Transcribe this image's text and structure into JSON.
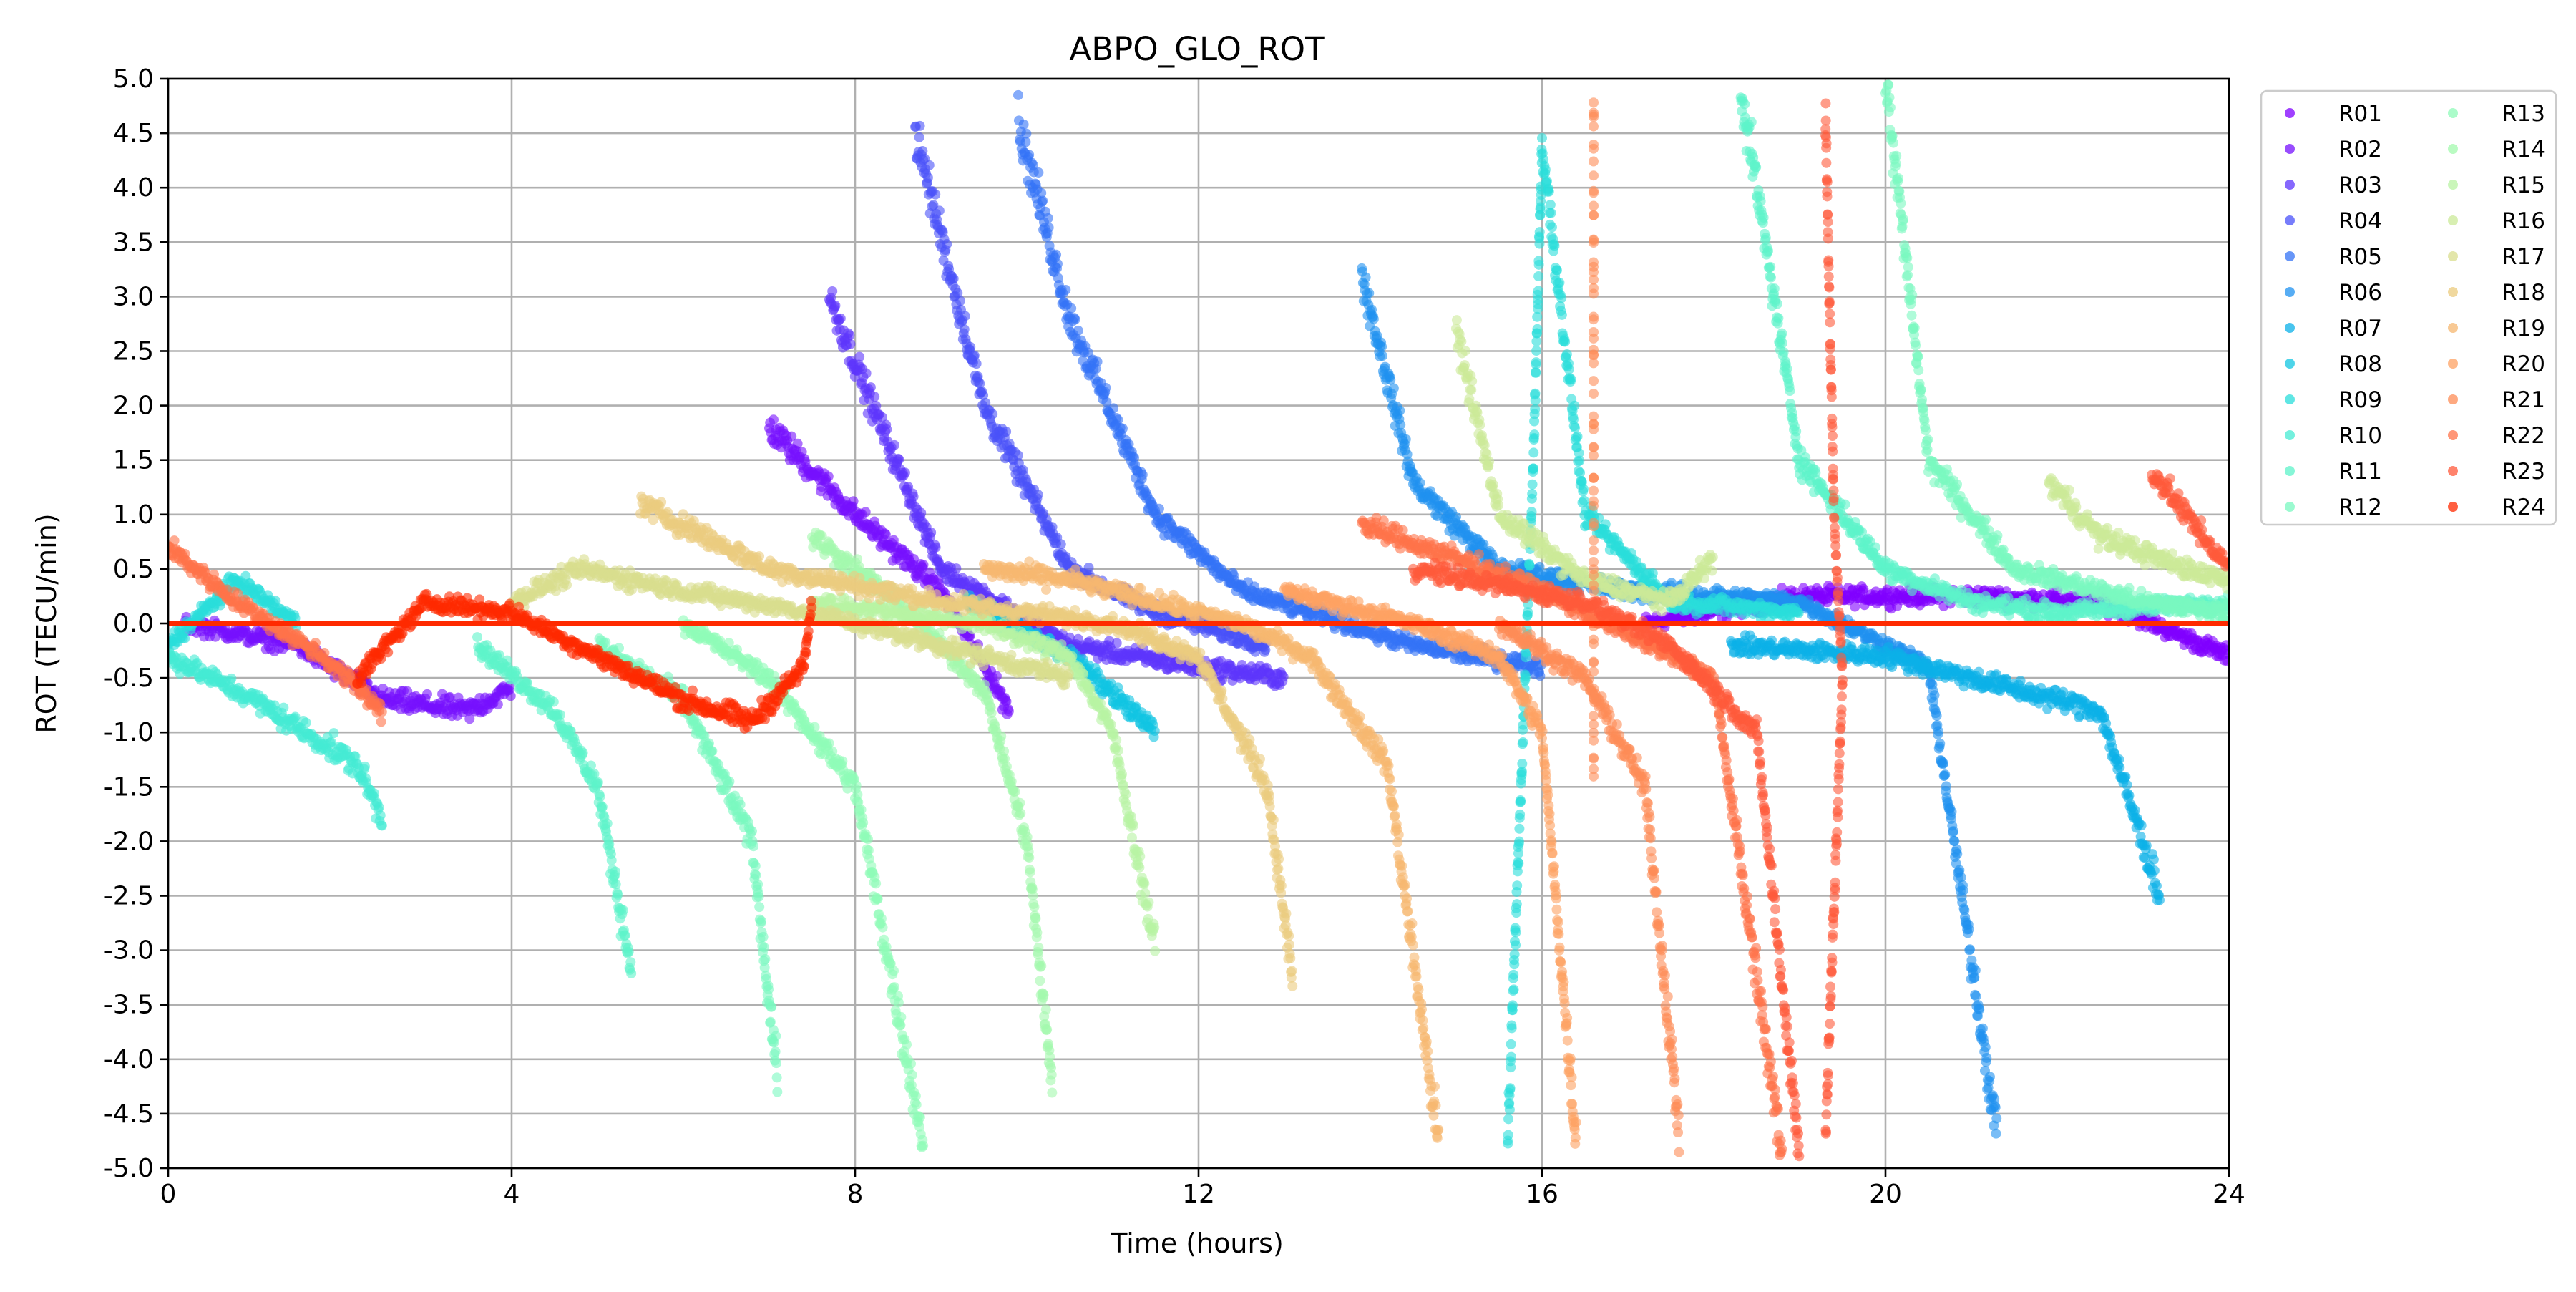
{
  "chart_data": {
    "type": "scatter",
    "title": "ABPO_GLO_ROT",
    "xlabel": "Time (hours)",
    "ylabel": "ROT (TECU/min)",
    "xlim": [
      0,
      24
    ],
    "ylim": [
      -5.0,
      5.0
    ],
    "xticks": [
      "0",
      "4",
      "8",
      "12",
      "16",
      "20",
      "24"
    ],
    "yticks": [
      "5.0",
      "4.5",
      "4.0",
      "3.5",
      "3.0",
      "2.5",
      "2.0",
      "1.5",
      "1.0",
      "0.5",
      "0.0",
      "-0.5",
      "-1.0",
      "-1.5",
      "-2.0",
      "-2.5",
      "-3.0",
      "-3.5",
      "-4.0",
      "-4.5",
      "-5.0"
    ],
    "grid": true,
    "legend_position": "outside-top-right",
    "reference_line": {
      "y": 0.0,
      "color": "#ff2a00"
    },
    "series": [
      {
        "name": "R01",
        "color": "#8000ff",
        "arcs": [
          [
            [
              17.2,
              0.0
            ],
            [
              19.0,
              0.25
            ],
            [
              21.0,
              0.25
            ],
            [
              22.5,
              0.2
            ],
            [
              24.0,
              -0.3
            ]
          ]
        ]
      },
      {
        "name": "R02",
        "color": "#7610fe",
        "arcs": [
          [
            [
              0.2,
              0.0
            ],
            [
              1.5,
              -0.2
            ],
            [
              2.5,
              -0.7
            ],
            [
              3.5,
              -0.8
            ],
            [
              4.0,
              -0.6
            ]
          ],
          [
            [
              7.0,
              1.8
            ],
            [
              8.0,
              1.0
            ],
            [
              9.0,
              0.3
            ],
            [
              9.8,
              -0.8
            ]
          ]
        ]
      },
      {
        "name": "R03",
        "color": "#5e36fc",
        "arcs": [
          [
            [
              7.7,
              3.0
            ],
            [
              8.2,
              2.0
            ],
            [
              9.0,
              0.5
            ],
            [
              10.5,
              -0.2
            ],
            [
              12.0,
              -0.4
            ],
            [
              13.0,
              -0.5
            ]
          ]
        ]
      },
      {
        "name": "R04",
        "color": "#4a52f9",
        "arcs": [
          [
            [
              8.7,
              4.5
            ],
            [
              9.5,
              2.0
            ],
            [
              10.5,
              0.5
            ],
            [
              11.5,
              0.1
            ],
            [
              12.8,
              -0.2
            ]
          ]
        ]
      },
      {
        "name": "R05",
        "color": "#3473f6",
        "arcs": [
          [
            [
              9.9,
              4.6
            ],
            [
              10.5,
              2.8
            ],
            [
              11.5,
              1.0
            ],
            [
              12.5,
              0.3
            ],
            [
              14.5,
              -0.2
            ],
            [
              16.0,
              -0.4
            ]
          ]
        ]
      },
      {
        "name": "R06",
        "color": "#1f91f0",
        "arcs": [
          [
            [
              13.9,
              3.2
            ],
            [
              14.5,
              1.3
            ],
            [
              15.5,
              0.5
            ],
            [
              17.0,
              0.3
            ],
            [
              19.0,
              0.2
            ],
            [
              20.5,
              -0.4
            ],
            [
              21.3,
              -4.7
            ]
          ]
        ]
      },
      {
        "name": "R07",
        "color": "#0bb0e8",
        "arcs": [
          [
            [
              18.2,
              -0.2
            ],
            [
              20.0,
              -0.3
            ],
            [
              21.0,
              -0.5
            ],
            [
              22.5,
              -0.8
            ],
            [
              23.2,
              -2.5
            ]
          ]
        ]
      },
      {
        "name": "R08",
        "color": "#11c5e2",
        "arcs": [
          [
            [
              9.3,
              0.2
            ],
            [
              10.5,
              -0.3
            ],
            [
              11.5,
              -1.0
            ]
          ]
        ]
      },
      {
        "name": "R09",
        "color": "#2adddb",
        "arcs": [
          [
            [
              0.0,
              -0.2
            ],
            [
              0.8,
              0.4
            ],
            [
              1.5,
              0.0
            ]
          ],
          [
            [
              15.6,
              -4.7
            ],
            [
              15.9,
              1.5
            ],
            [
              16.0,
              4.4
            ],
            [
              16.5,
              1.0
            ],
            [
              17.5,
              0.2
            ],
            [
              19.0,
              0.1
            ]
          ]
        ]
      },
      {
        "name": "R10",
        "color": "#45ebd3",
        "arcs": [
          [
            [
              0.0,
              -0.3
            ],
            [
              1.0,
              -0.7
            ],
            [
              2.2,
              -1.3
            ],
            [
              2.5,
              -1.8
            ]
          ]
        ]
      },
      {
        "name": "R11",
        "color": "#5ef3ca",
        "arcs": [
          [
            [
              18.3,
              5.0
            ],
            [
              19.0,
              1.5
            ],
            [
              20.0,
              0.5
            ],
            [
              21.0,
              0.2
            ],
            [
              22.0,
              0.1
            ],
            [
              24.0,
              0.2
            ]
          ],
          [
            [
              3.6,
              -0.2
            ],
            [
              4.5,
              -0.8
            ],
            [
              5.0,
              -1.5
            ],
            [
              5.4,
              -3.2
            ]
          ]
        ]
      },
      {
        "name": "R12",
        "color": "#79f8c0",
        "arcs": [
          [
            [
              5.0,
              -0.2
            ],
            [
              6.0,
              -0.7
            ],
            [
              6.8,
              -2.0
            ],
            [
              7.1,
              -4.2
            ]
          ],
          [
            [
              20.0,
              5.0
            ],
            [
              20.5,
              1.5
            ],
            [
              21.5,
              0.5
            ],
            [
              23.0,
              0.2
            ],
            [
              24.0,
              0.1
            ]
          ]
        ]
      },
      {
        "name": "R13",
        "color": "#8ffbb8",
        "arcs": [
          [
            [
              6.0,
              0.0
            ],
            [
              7.0,
              -0.5
            ],
            [
              8.0,
              -1.5
            ],
            [
              8.8,
              -4.8
            ]
          ]
        ]
      },
      {
        "name": "R14",
        "color": "#a3f9ae",
        "arcs": [
          [
            [
              7.5,
              0.8
            ],
            [
              8.5,
              0.2
            ],
            [
              9.5,
              -0.6
            ],
            [
              10.0,
              -2.0
            ],
            [
              10.3,
              -4.3
            ]
          ]
        ]
      },
      {
        "name": "R15",
        "color": "#b8f3a3",
        "arcs": [
          [
            [
              7.5,
              0.2
            ],
            [
              9.5,
              0.0
            ],
            [
              10.5,
              -0.3
            ],
            [
              11.0,
              -1.0
            ],
            [
              11.5,
              -3.0
            ]
          ]
        ]
      },
      {
        "name": "R16",
        "color": "#cbea98",
        "arcs": [
          [
            [
              15.0,
              2.7
            ],
            [
              15.5,
              1.0
            ],
            [
              16.5,
              0.4
            ],
            [
              17.5,
              0.2
            ],
            [
              18.0,
              0.6
            ]
          ],
          [
            [
              21.9,
              1.3
            ],
            [
              22.5,
              0.8
            ],
            [
              23.5,
              0.5
            ],
            [
              24.0,
              0.4
            ]
          ]
        ]
      },
      {
        "name": "R17",
        "color": "#d9dd8d",
        "arcs": [
          [
            [
              4.0,
              0.2
            ],
            [
              4.8,
              0.5
            ],
            [
              6.0,
              0.3
            ],
            [
              7.5,
              0.1
            ],
            [
              9.0,
              -0.2
            ],
            [
              10.5,
              -0.5
            ]
          ]
        ]
      },
      {
        "name": "R18",
        "color": "#ebcb7e",
        "arcs": [
          [
            [
              5.5,
              1.1
            ],
            [
              7.0,
              0.5
            ],
            [
              9.0,
              0.2
            ],
            [
              11.0,
              0.0
            ],
            [
              12.0,
              -0.3
            ],
            [
              12.8,
              -1.5
            ],
            [
              13.1,
              -3.3
            ]
          ]
        ]
      },
      {
        "name": "R19",
        "color": "#f6b770",
        "arcs": [
          [
            [
              9.5,
              0.5
            ],
            [
              10.5,
              0.4
            ],
            [
              11.5,
              0.2
            ],
            [
              12.5,
              0.0
            ],
            [
              13.3,
              -0.3
            ],
            [
              14.2,
              -1.3
            ],
            [
              14.8,
              -4.8
            ]
          ]
        ]
      },
      {
        "name": "R20",
        "color": "#fda263",
        "arcs": [
          [
            [
              13.0,
              0.3
            ],
            [
              14.5,
              0.0
            ],
            [
              15.5,
              -0.3
            ],
            [
              16.0,
              -1.0
            ],
            [
              16.4,
              -4.8
            ]
          ]
        ]
      },
      {
        "name": "R21",
        "color": "#fe8c56",
        "arcs": [
          [
            [
              15.5,
              0.0
            ],
            [
              16.5,
              -0.5
            ],
            [
              17.2,
              -1.5
            ],
            [
              17.6,
              -4.7
            ]
          ],
          [
            [
              16.6,
              4.8
            ],
            [
              16.6,
              3.2
            ],
            [
              16.6,
              -1.5
            ]
          ]
        ]
      },
      {
        "name": "R22",
        "color": "#ff7349",
        "arcs": [
          [
            [
              0.0,
              0.7
            ],
            [
              0.8,
              0.2
            ],
            [
              1.8,
              -0.3
            ],
            [
              2.5,
              -0.8
            ]
          ],
          [
            [
              13.9,
              0.9
            ],
            [
              15.0,
              0.6
            ],
            [
              16.0,
              0.3
            ],
            [
              17.0,
              -0.1
            ],
            [
              18.0,
              -0.5
            ],
            [
              18.8,
              -4.9
            ]
          ]
        ]
      },
      {
        "name": "R23",
        "color": "#ff5a3b",
        "arcs": [
          [
            [
              14.5,
              0.5
            ],
            [
              16.5,
              0.2
            ],
            [
              17.5,
              -0.2
            ],
            [
              18.5,
              -1.0
            ],
            [
              19.0,
              -4.9
            ]
          ],
          [
            [
              23.1,
              1.4
            ],
            [
              23.5,
              1.0
            ],
            [
              24.0,
              0.5
            ]
          ],
          [
            [
              19.3,
              4.7
            ],
            [
              19.4,
              1.0
            ],
            [
              19.5,
              -0.5
            ],
            [
              19.3,
              -4.7
            ]
          ]
        ]
      },
      {
        "name": "R24",
        "color": "#ff2a00",
        "arcs": [
          [
            [
              2.2,
              -0.5
            ],
            [
              3.0,
              0.2
            ],
            [
              4.0,
              0.1
            ],
            [
              5.0,
              -0.3
            ],
            [
              6.0,
              -0.7
            ],
            [
              6.8,
              -0.9
            ],
            [
              7.4,
              -0.4
            ],
            [
              7.5,
              0.2
            ]
          ]
        ]
      }
    ]
  }
}
